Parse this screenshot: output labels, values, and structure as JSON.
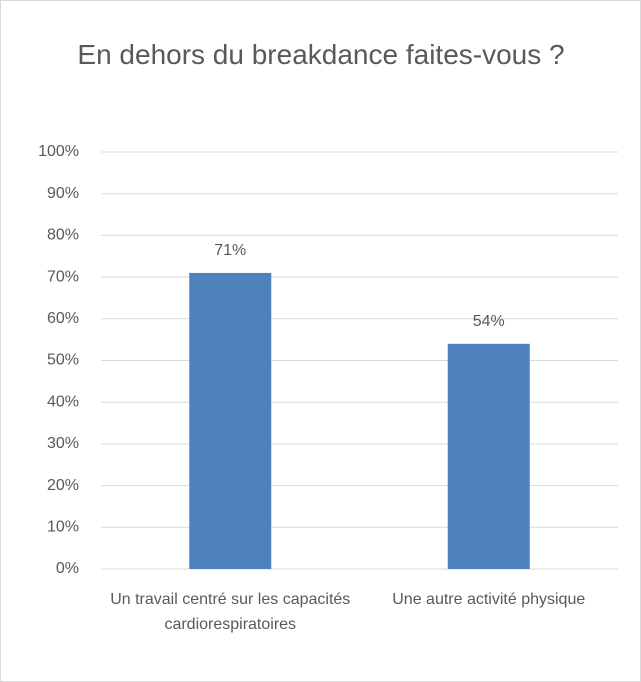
{
  "chart_data": {
    "type": "bar",
    "title": "En dehors du breakdance faites-vous ?",
    "categories": [
      "Un travail centré sur les capacités cardiorespiratoires",
      "Une autre activité physique"
    ],
    "values": [
      71,
      54
    ],
    "value_labels": [
      "71%",
      "54%"
    ],
    "color": "#4f81bd",
    "ylim": [
      0,
      100
    ],
    "yticks": [
      {
        "value": 0,
        "label": "0%"
      },
      {
        "value": 10,
        "label": "10%"
      },
      {
        "value": 20,
        "label": "20%"
      },
      {
        "value": 30,
        "label": "30%"
      },
      {
        "value": 40,
        "label": "40%"
      },
      {
        "value": 50,
        "label": "50%"
      },
      {
        "value": 60,
        "label": "60%"
      },
      {
        "value": 70,
        "label": "70%"
      },
      {
        "value": 80,
        "label": "80%"
      },
      {
        "value": 90,
        "label": "90%"
      },
      {
        "value": 100,
        "label": "100%"
      }
    ],
    "grid": true
  }
}
